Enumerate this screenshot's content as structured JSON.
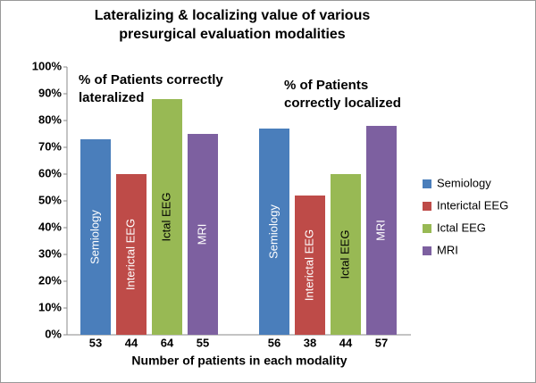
{
  "chart_data": {
    "type": "bar",
    "title": "Lateralizing & localizing value of various presurgical evaluation modalities",
    "x_label": "Number of patients in each modality",
    "groups": [
      "% of Patients correctly lateralized",
      "% of Patients correctly localized"
    ],
    "series": [
      {
        "name": "Semiology",
        "color": "#4a7ebb",
        "text_color": "#ffffff",
        "values": [
          73,
          77
        ],
        "counts": [
          53,
          56
        ]
      },
      {
        "name": "Interictal EEG",
        "color": "#be4b48",
        "text_color": "#ffffff",
        "values": [
          60,
          52
        ],
        "counts": [
          44,
          38
        ]
      },
      {
        "name": "Ictal EEG",
        "color": "#98b954",
        "text_color": "#000000",
        "values": [
          88,
          60
        ],
        "counts": [
          64,
          44
        ]
      },
      {
        "name": "MRI",
        "color": "#7d60a0",
        "text_color": "#ffffff",
        "values": [
          75,
          78
        ],
        "counts": [
          55,
          57
        ]
      }
    ],
    "ylim": [
      0,
      100
    ],
    "yticks": [
      {
        "value": 0,
        "label": "0%"
      },
      {
        "value": 10,
        "label": "10%"
      },
      {
        "value": 20,
        "label": "20%"
      },
      {
        "value": 30,
        "label": "30%"
      },
      {
        "value": 40,
        "label": "40%"
      },
      {
        "value": 50,
        "label": "50%"
      },
      {
        "value": 60,
        "label": "60%"
      },
      {
        "value": 70,
        "label": "70%"
      },
      {
        "value": 80,
        "label": "80%"
      },
      {
        "value": 90,
        "label": "90%"
      },
      {
        "value": 100,
        "label": "100%"
      }
    ],
    "legend": "right"
  }
}
